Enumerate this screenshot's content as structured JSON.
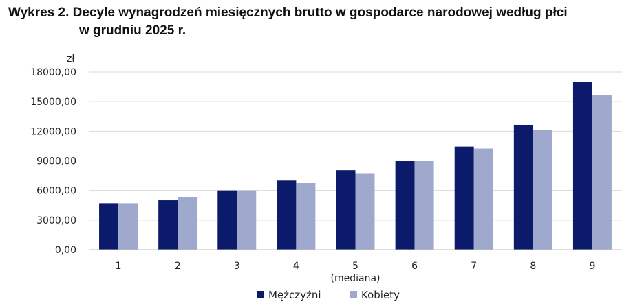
{
  "title_line1": "Wykres 2. Decyle wynagrodzeń miesięcznych brutto w gospodarce narodowej według płci",
  "title_line2": "w grudniu 2025 r.",
  "chart_data": {
    "type": "bar",
    "title": "Wykres 2. Decyle wynagrodzeń miesięcznych brutto w gospodarce narodowej według płci w grudniu 2025 r.",
    "ylabel": "zł",
    "xlabel": "",
    "categories": [
      "1",
      "2",
      "3",
      "4",
      "5",
      "6",
      "7",
      "8",
      "9"
    ],
    "category_sublabels": {
      "5": "(mediana)"
    },
    "y_ticks": [
      "0,00",
      "3000,00",
      "6000,00",
      "9000,00",
      "12000,00",
      "15000,00",
      "18000,00"
    ],
    "ylim": [
      0,
      18000
    ],
    "grid": true,
    "legend_position": "bottom",
    "series": [
      {
        "name": "Mężczyźni",
        "color": "#0c1a6b",
        "values": [
          4700,
          5000,
          6000,
          7000,
          8050,
          9000,
          10450,
          12650,
          17000
        ]
      },
      {
        "name": "Kobiety",
        "color": "#9ea9cd",
        "values": [
          4700,
          5350,
          6000,
          6800,
          7750,
          9000,
          10250,
          12100,
          15650
        ]
      }
    ]
  }
}
